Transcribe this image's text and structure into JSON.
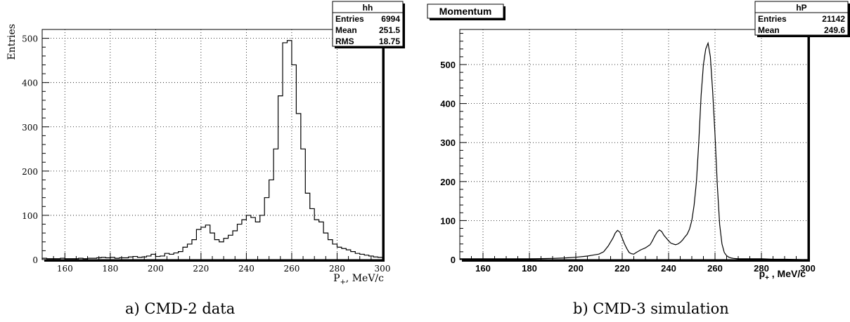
{
  "chart_data": [
    {
      "type": "bar",
      "histogram": true,
      "bin_width": 2,
      "xlim": [
        150,
        300
      ],
      "ylim": [
        0,
        520
      ],
      "xticks": [
        160,
        180,
        200,
        220,
        240,
        260,
        280,
        300
      ],
      "yticks": [
        0,
        100,
        200,
        300,
        400,
        500
      ],
      "ylabel": "Entries",
      "xlabel": "P+, MeV/c",
      "xlabel_main": "P",
      "xlabel_sub": "+",
      "xlabel_tail": ", MeV/c",
      "grid": true,
      "stats": {
        "title": "hh",
        "rows": [
          {
            "label": "Entries",
            "value": "6994"
          },
          {
            "label": "Mean",
            "value": "251.5"
          },
          {
            "label": "RMS",
            "value": "18.75"
          }
        ]
      },
      "caption": "a) CMD-2 data",
      "edges": [
        150,
        152,
        154,
        156,
        158,
        160,
        162,
        164,
        166,
        168,
        170,
        172,
        174,
        176,
        178,
        180,
        182,
        184,
        186,
        188,
        190,
        192,
        194,
        196,
        198,
        200,
        202,
        204,
        206,
        208,
        210,
        212,
        214,
        216,
        218,
        220,
        222,
        224,
        226,
        228,
        230,
        232,
        234,
        236,
        238,
        240,
        242,
        244,
        246,
        248,
        250,
        252,
        254,
        256,
        258,
        260,
        262,
        264,
        266,
        268,
        270,
        272,
        274,
        276,
        278,
        280,
        282,
        284,
        286,
        288,
        290,
        292,
        294,
        296,
        298,
        300
      ],
      "values": [
        3,
        2,
        2,
        2,
        3,
        2,
        2,
        2,
        3,
        2,
        3,
        3,
        4,
        5,
        4,
        5,
        3,
        4,
        4,
        6,
        7,
        5,
        6,
        8,
        12,
        7,
        8,
        14,
        12,
        15,
        18,
        28,
        35,
        45,
        68,
        73,
        78,
        60,
        45,
        40,
        48,
        55,
        65,
        80,
        90,
        100,
        95,
        85,
        100,
        140,
        180,
        250,
        370,
        490,
        495,
        440,
        330,
        250,
        150,
        115,
        90,
        85,
        60,
        45,
        35,
        28,
        25,
        22,
        18,
        14,
        12,
        10,
        8,
        6,
        5
      ]
    },
    {
      "type": "line",
      "histogram": true,
      "xlim": [
        150,
        300
      ],
      "ylim": [
        0,
        590
      ],
      "xticks": [
        160,
        180,
        200,
        220,
        240,
        260,
        280,
        300
      ],
      "yticks": [
        0,
        100,
        200,
        300,
        400,
        500
      ],
      "xlabel": "p+ , MeV/c",
      "xlabel_main": "p",
      "xlabel_sub": "+",
      "xlabel_tail": " , MeV/c",
      "ylabel": "",
      "title": "Momentum",
      "grid": true,
      "stats": {
        "title": "hP",
        "rows": [
          {
            "label": "Entries",
            "value": "21142"
          },
          {
            "label": "Mean",
            "value": "249.6"
          }
        ]
      },
      "caption": "b) CMD-3 simulation",
      "x": [
        150,
        160,
        170,
        180,
        190,
        195,
        200,
        205,
        208,
        210,
        212,
        214,
        215,
        216,
        217,
        218,
        219,
        220,
        221,
        222,
        223,
        224,
        225,
        226,
        228,
        230,
        232,
        233,
        234,
        235,
        236,
        237,
        238,
        239,
        240,
        241,
        242,
        243,
        244,
        245,
        246,
        247,
        248,
        249,
        250,
        251,
        252,
        253,
        254,
        255,
        256,
        257,
        258,
        259,
        260,
        261,
        262,
        263,
        264,
        265,
        266,
        267,
        268,
        270,
        275,
        280,
        285,
        290,
        300
      ],
      "values": [
        2,
        2,
        2,
        2,
        3,
        4,
        6,
        9,
        12,
        14,
        20,
        35,
        45,
        55,
        68,
        75,
        70,
        55,
        40,
        28,
        18,
        15,
        14,
        18,
        25,
        30,
        38,
        48,
        60,
        70,
        76,
        72,
        62,
        55,
        48,
        42,
        40,
        38,
        40,
        44,
        50,
        58,
        65,
        78,
        100,
        140,
        200,
        300,
        420,
        500,
        540,
        555,
        520,
        430,
        320,
        190,
        90,
        40,
        18,
        10,
        6,
        4,
        3,
        2,
        2,
        2,
        1,
        1,
        0
      ]
    }
  ]
}
